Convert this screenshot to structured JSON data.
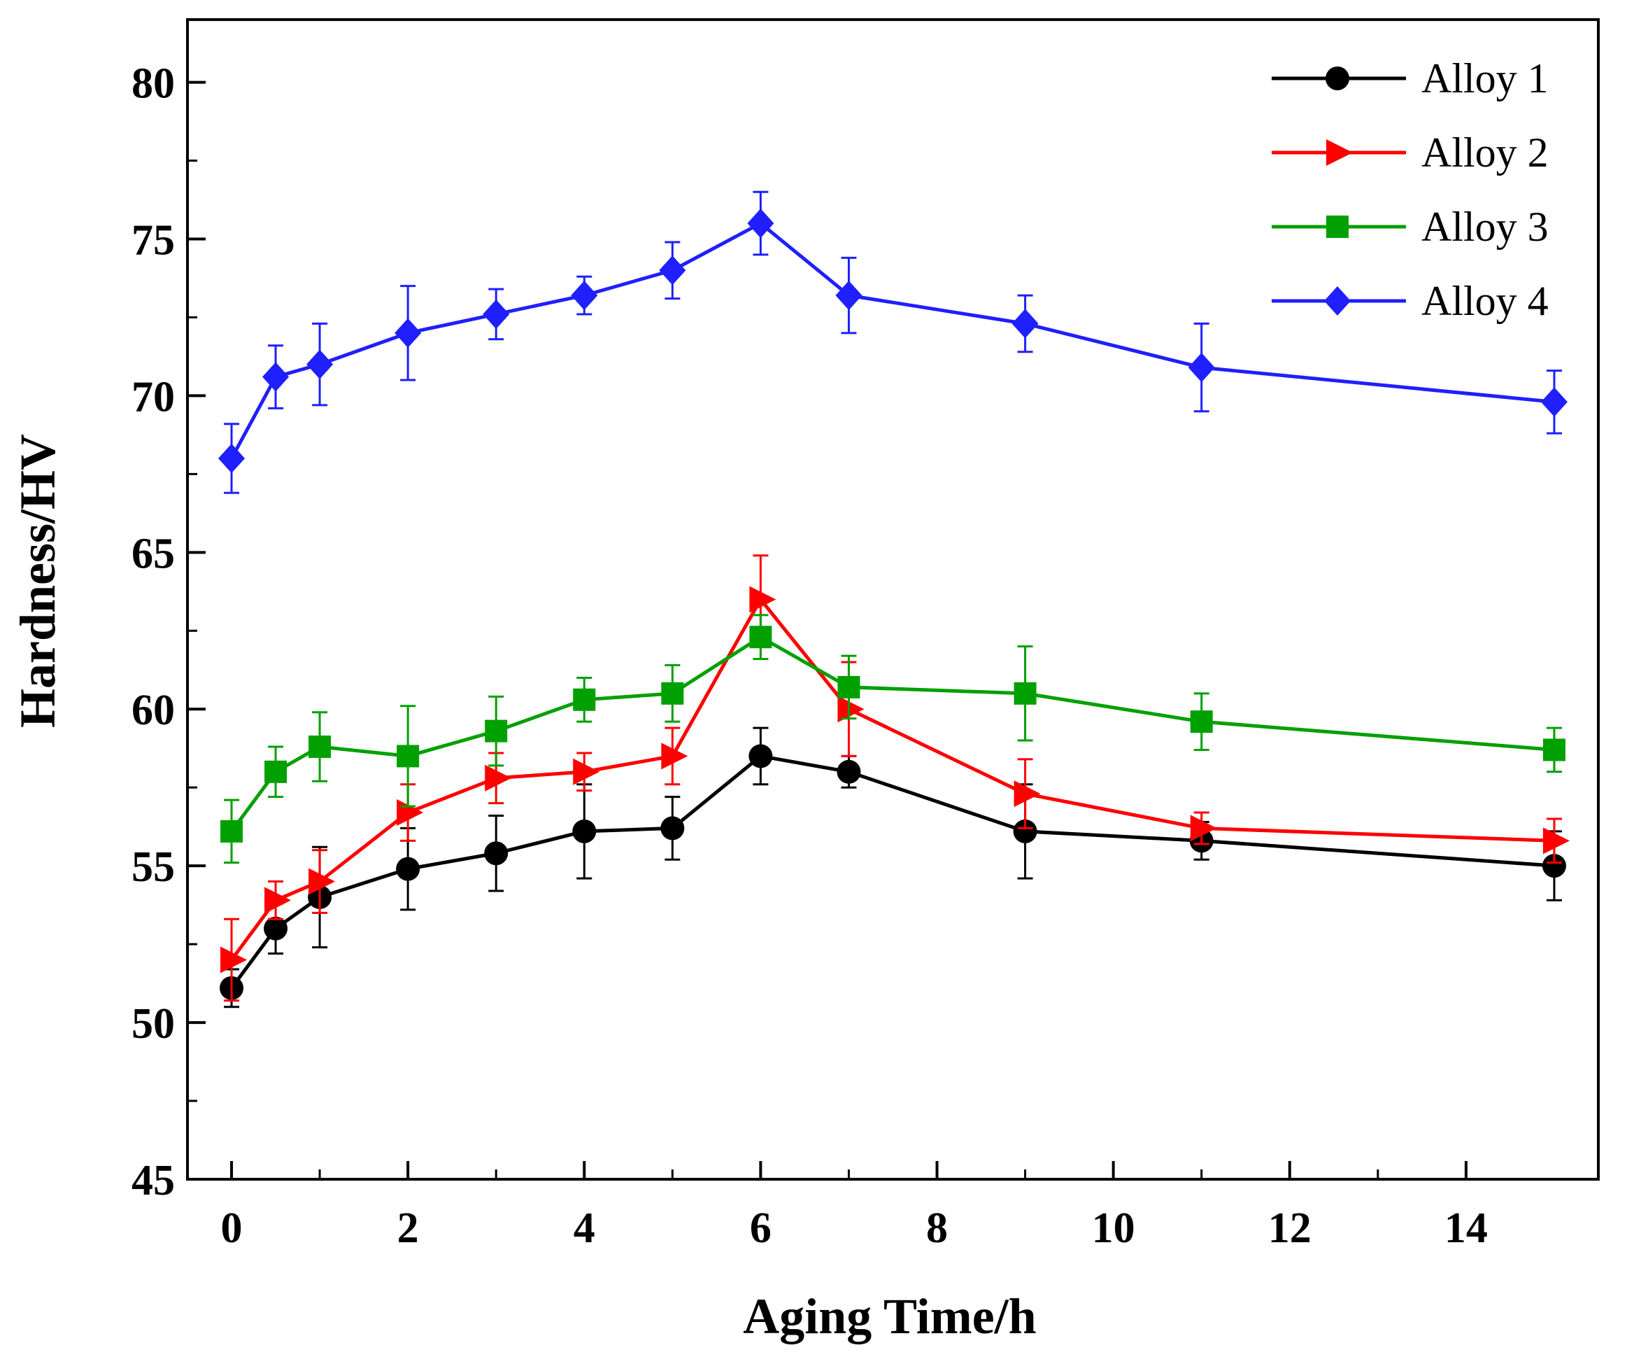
{
  "chart_data": {
    "type": "line",
    "xlabel": "Aging Time/h",
    "ylabel": "Hardness/HV",
    "xlim": [
      -0.5,
      15.5
    ],
    "ylim": [
      45,
      82
    ],
    "xticks": [
      0,
      2,
      4,
      6,
      8,
      10,
      12,
      14
    ],
    "yticks": [
      45,
      50,
      55,
      60,
      65,
      70,
      75,
      80
    ],
    "x": [
      0,
      0.5,
      1,
      2,
      3,
      4,
      5,
      6,
      7,
      9,
      11,
      15
    ],
    "legend_position": "top-right",
    "grid": false,
    "series": [
      {
        "name": "Alloy 1",
        "color": "#000000",
        "marker": "circle",
        "values": [
          51.1,
          53.0,
          54.0,
          54.9,
          55.4,
          56.1,
          56.2,
          58.5,
          58.0,
          56.1,
          55.8,
          55.0
        ],
        "errors": [
          0.6,
          0.8,
          1.6,
          1.3,
          1.2,
          1.5,
          1.0,
          0.9,
          0.5,
          1.5,
          0.6,
          1.1
        ]
      },
      {
        "name": "Alloy 2",
        "color": "#ff0000",
        "marker": "triangle-right",
        "values": [
          52.0,
          53.9,
          54.5,
          56.7,
          57.8,
          58.0,
          58.5,
          63.5,
          60.0,
          57.3,
          56.2,
          55.8
        ],
        "errors": [
          1.3,
          0.6,
          1.0,
          0.9,
          0.8,
          0.6,
          0.9,
          1.4,
          1.5,
          1.1,
          0.5,
          0.7
        ]
      },
      {
        "name": "Alloy 3",
        "color": "#00a000",
        "marker": "square",
        "values": [
          56.1,
          58.0,
          58.8,
          58.5,
          59.3,
          60.3,
          60.5,
          62.3,
          60.7,
          60.5,
          59.6,
          58.7
        ],
        "errors": [
          1.0,
          0.8,
          1.1,
          1.6,
          1.1,
          0.7,
          0.9,
          0.7,
          1.0,
          1.5,
          0.9,
          0.7
        ]
      },
      {
        "name": "Alloy 4",
        "color": "#1f1fff",
        "marker": "diamond",
        "values": [
          68.0,
          70.6,
          71.0,
          72.0,
          72.6,
          73.2,
          74.0,
          75.5,
          73.2,
          72.3,
          70.9,
          69.8
        ],
        "errors": [
          1.1,
          1.0,
          1.3,
          1.5,
          0.8,
          0.6,
          0.9,
          1.0,
          1.2,
          0.9,
          1.4,
          1.0
        ]
      }
    ]
  }
}
